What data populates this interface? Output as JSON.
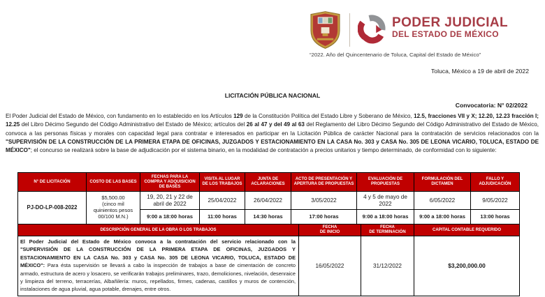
{
  "colors": {
    "table_header_red": "#c00000",
    "brand_red": "#a73c46"
  },
  "header": {
    "brand_title": "PODER JUDICIAL",
    "brand_subtitle": "DEL ESTADO DE MÉXICO",
    "tagline": "“2022. Año del Quincentenario de Toluca, Capital del Estado de México”",
    "dateline": "Toluca, México a 19 de abril de 2022"
  },
  "document": {
    "title": "LICITACIÓN PÚBLICA NACIONAL",
    "convocatoria": "Convocatoria: N° 02/2022",
    "intro_segments": [
      {
        "t": "El Poder Judicial del Estado de México, con fundamento en lo establecido en los Artículos ",
        "b": false
      },
      {
        "t": "129",
        "b": true
      },
      {
        "t": " de la Constitución Política del Estado Libre y Soberano de México, ",
        "b": false
      },
      {
        "t": "12.5, fracciones VII y X; 12.20, 12.23 fracción I; 12.25",
        "b": true
      },
      {
        "t": " del Libro Décimo Segundo del Código Administrativo del Estado de México; artículos del ",
        "b": false
      },
      {
        "t": "26 al 47 y del 49 al 63",
        "b": true
      },
      {
        "t": " del Reglamento del Libro Décimo Segundo del Código Administrativo del Estado de México, convoca a las personas físicas y morales con capacidad legal para contratar e interesados en participar en la Licitación Pública de carácter Nacional para la contratación de servicios relacionados con la ",
        "b": false
      },
      {
        "t": "\"SUPERVISIÓN DE LA CONSTRUCCIÓN DE LA PRIMERA ETAPA DE OFICINAS, JUZGADOS Y ESTACIONAMIENTO EN LA CASA No. 303 y CASA No. 305 DE LEONA VICARIO, TOLUCA, ESTADO DE MÉXICO\"",
        "b": true
      },
      {
        "t": "; el concurso se realizará sobre la base de adjudicación por el sistema binario, en la modalidad de contratación a precios unitarios y tiempo determinado, de conformidad con lo siguiente:",
        "b": false
      }
    ]
  },
  "schedule_table": {
    "headers": [
      "N° DE LICITACIÓN",
      "COSTO DE LAS BASES",
      "FECHAS PARA LA COMPRA Y ADQUISICION DE BASES",
      "VISITA AL LUGAR DE LOS TRABAJOS",
      "JUNTA DE ACLARACIONES",
      "ACTO DE PRESENTACIÓN Y APERTURA DE PROPUESTAS",
      "EVALUACIÓN DE PROPUESTAS",
      "FORMULACIÓN DEL DICTAMEN",
      "FALLO Y ADJUDICACIÓN"
    ],
    "row": {
      "licitacion": "PJ-DO-LP-008-2022",
      "costo": "$5,500.00\n(cinco mil\nquinientos pesos\n00/100 M.N.)",
      "dates": [
        "19, 20, 21 y 22 de abril de 2022",
        "25/04/2022",
        "26/04/2022",
        "3/05/2022",
        "4 y 5 de mayo de 2022",
        "6/05/2022",
        "9/05/2022"
      ],
      "times": [
        "9:00 a 18:00 horas",
        "11:00 horas",
        "14:30 horas",
        "17:00 horas",
        "9:00 a 18:00 horas",
        "9:00 a 18:00 horas",
        "13:00 horas"
      ]
    }
  },
  "detail_table": {
    "headers": {
      "descripcion": "DESCRIPCIÓN GENERAL DE LA OBRA O LOS TRABAJOS",
      "fecha_inicio": "FECHA\nDE INICIO",
      "fecha_terminacion": "FECHA\nDE TERMINACIÓN",
      "capital": "CAPITAL CONTABLE REQUERIDO"
    },
    "description_segments": [
      {
        "t": "El Poder Judicial del Estado de México convoca a la contratación del servicio relacionado con la \"SUPERVISIÓN DE LA CONSTRUCCIÓN DE LA PRIMERA ETAPA DE OFICINAS, JUZGADOS Y ESTACIONAMIENTO EN LA CASA No. 303 y CASA No. 305 DE LEONA VICARIO, TOLUCA, ESTADO DE MÉXICO\": ",
        "b": true
      },
      {
        "t": "Para ésta supervisión se llevará a cabo la inspección de trabajos a base de cimentación de concreto armado, estructura de acero y losacero, se verificarán trabajos preliminares, trazo, demoliciones, nivelación, desenraice y limpieza del terreno, terracerías, Albañilería: muros, repellados, firmes, cadenas, castillos y muros de contención, instalaciones de agua pluvial, agua potable, drenajes, entre otros.",
        "b": false
      }
    ],
    "row": {
      "fecha_inicio": "16/05/2022",
      "fecha_terminacion": "31/12/2022",
      "capital": "$3,200,000.00"
    }
  }
}
